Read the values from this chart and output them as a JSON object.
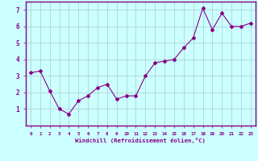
{
  "x": [
    0,
    1,
    2,
    3,
    4,
    5,
    6,
    7,
    8,
    9,
    10,
    11,
    12,
    13,
    14,
    15,
    16,
    17,
    18,
    19,
    20,
    21,
    22,
    23
  ],
  "y": [
    3.2,
    3.3,
    2.1,
    1.0,
    0.7,
    1.5,
    1.8,
    2.3,
    2.5,
    1.6,
    1.8,
    1.8,
    3.0,
    3.8,
    3.9,
    4.0,
    4.7,
    5.3,
    7.1,
    5.8,
    6.8,
    6.0,
    6.0,
    6.2
  ],
  "line_color": "#880088",
  "marker": "D",
  "marker_size": 2.0,
  "bg_color": "#ccffff",
  "grid_color": "#aacccc",
  "xlabel": "Windchill (Refroidissement éolien,°C)",
  "xlabel_color": "#880088",
  "tick_color": "#880088",
  "spine_color": "#880088",
  "ylim": [
    0,
    7.5
  ],
  "xlim": [
    -0.5,
    23.5
  ],
  "yticks": [
    1,
    2,
    3,
    4,
    5,
    6,
    7
  ],
  "xticks": [
    0,
    1,
    2,
    3,
    4,
    5,
    6,
    7,
    8,
    9,
    10,
    11,
    12,
    13,
    14,
    15,
    16,
    17,
    18,
    19,
    20,
    21,
    22,
    23
  ],
  "xtick_labels": [
    "0",
    "1",
    "2",
    "3",
    "4",
    "5",
    "6",
    "7",
    "8",
    "9",
    "10",
    "11",
    "12",
    "13",
    "14",
    "15",
    "16",
    "17",
    "18",
    "19",
    "20",
    "21",
    "22",
    "23"
  ]
}
